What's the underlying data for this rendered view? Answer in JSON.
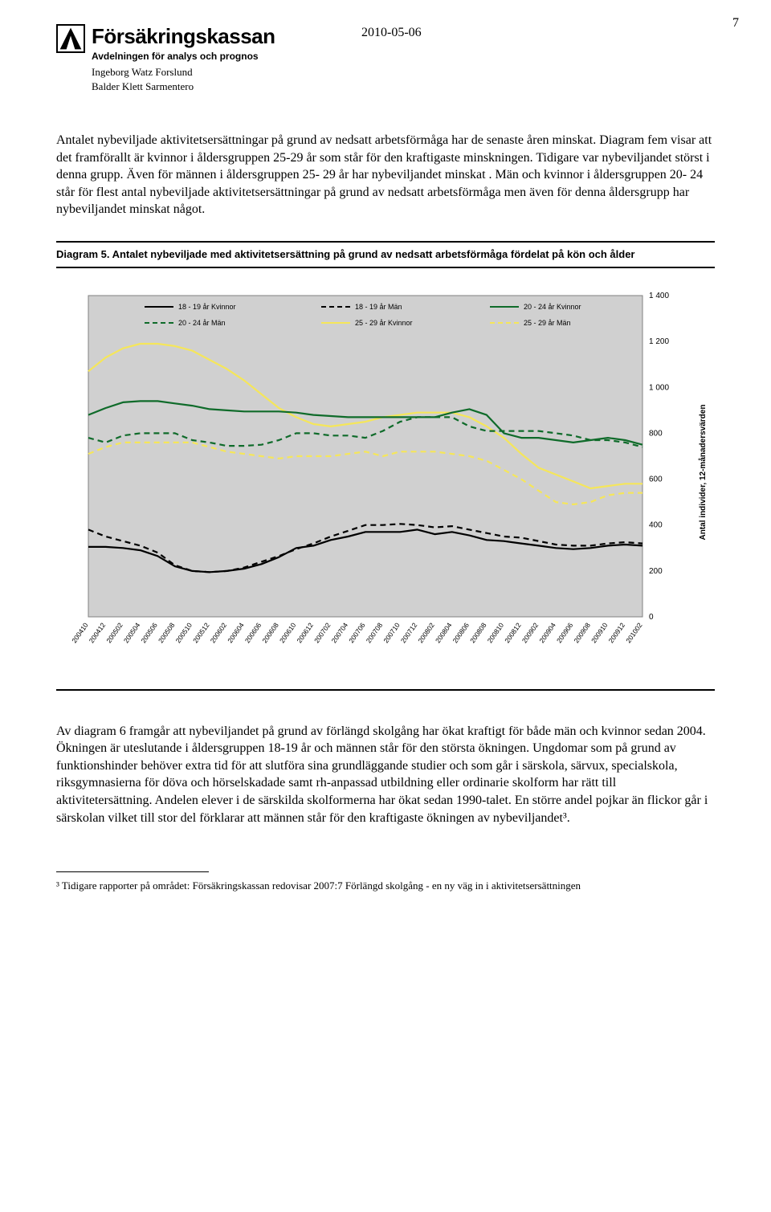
{
  "header": {
    "org_name": "Försäkringskassan",
    "department": "Avdelningen för analys och prognos",
    "author1": "Ingeborg Watz Forslund",
    "author2": "Balder Klett Sarmentero",
    "date": "2010-05-06",
    "page_number": "7"
  },
  "paragraph1": "Antalet nybeviljade aktivitetsersättningar på grund av nedsatt arbetsförmåga har de senaste åren minskat. Diagram fem visar att det framförallt är kvinnor i åldersgruppen 25-29 år som står för den kraftigaste minskningen. Tidigare var nybeviljandet störst i denna grupp. Även för männen i åldersgruppen 25- 29 år har nybeviljandet minskat . Män och kvinnor i åldersgruppen 20- 24 står för flest antal nybeviljade aktivitetsersättningar på grund av nedsatt arbetsförmåga men även för denna åldersgrupp har nybeviljandet minskat något.",
  "caption": "Diagram 5. Antalet nybeviljade med aktivitetsersättning på grund av nedsatt arbetsförmåga fördelat på kön och ålder",
  "paragraph2": "Av diagram 6 framgår att nybeviljandet på grund av förlängd skolgång har ökat kraftigt för både män och kvinnor sedan 2004. Ökningen är uteslutande i åldersgruppen 18-19 år och männen står för den största ökningen. Ungdomar som på grund av funktionshinder behöver extra tid för att slutföra sina grundläggande studier och som går i särskola, särvux, specialskola, riksgymnasierna för döva och hörselskadade samt rh-anpassad utbildning eller ordinarie skolform har rätt till aktivitetersättning. Andelen elever i de särskilda skolformerna har ökat sedan 1990-talet. En större andel pojkar än flickor går i särskolan vilket till stor del förklarar att männen står för den kraftigaste ökningen av nybeviljandet³.",
  "footnote": "³ Tidigare rapporter på området: Försäkringskassan redovisar 2007:7 Förlängd skolgång - en ny väg in i aktivitetsersättningen",
  "chart": {
    "type": "line",
    "background_color": "#d0d0d0",
    "plot_background": "#d0d0d0",
    "frame_color": "#808080",
    "title": "",
    "ylabel": "Antal individer, 12-månadersvärden",
    "label_fontsize": 10,
    "ylim": [
      0,
      1400
    ],
    "ytick_step": 200,
    "yticks": [
      "0",
      "200",
      "400",
      "600",
      "800",
      "1 000",
      "1 200",
      "1 400"
    ],
    "legend_fontsize": 9,
    "legend": [
      {
        "label": "18 - 19 år Kvinnor",
        "color": "#000000",
        "dash": "solid"
      },
      {
        "label": "18 - 19 år Män",
        "color": "#000000",
        "dash": "dashed"
      },
      {
        "label": "20 - 24 år Kvinnor",
        "color": "#0f6b2a",
        "dash": "solid"
      },
      {
        "label": "20 - 24 år Män",
        "color": "#0f6b2a",
        "dash": "dashed"
      },
      {
        "label": "25 - 29 år Kvinnor",
        "color": "#f5e65a",
        "dash": "solid"
      },
      {
        "label": "25 - 29 år Män",
        "color": "#f5e65a",
        "dash": "dashed"
      }
    ],
    "x_labels": [
      "200410",
      "200412",
      "200502",
      "200504",
      "200506",
      "200508",
      "200510",
      "200512",
      "200602",
      "200604",
      "200606",
      "200608",
      "200610",
      "200612",
      "200702",
      "200704",
      "200706",
      "200708",
      "200710",
      "200712",
      "200802",
      "200804",
      "200806",
      "200808",
      "200810",
      "200812",
      "200902",
      "200904",
      "200906",
      "200908",
      "200910",
      "200912",
      "201002"
    ],
    "series": {
      "s1_18_19_k": [
        305,
        305,
        300,
        290,
        265,
        220,
        200,
        195,
        200,
        210,
        230,
        260,
        300,
        310,
        335,
        350,
        370,
        370,
        370,
        380,
        360,
        370,
        355,
        335,
        330,
        320,
        310,
        300,
        295,
        300,
        310,
        315,
        310
      ],
      "s2_18_19_m": [
        380,
        350,
        330,
        310,
        280,
        225,
        200,
        195,
        200,
        215,
        240,
        265,
        295,
        320,
        350,
        375,
        400,
        400,
        405,
        400,
        390,
        395,
        380,
        365,
        350,
        345,
        330,
        315,
        310,
        310,
        320,
        325,
        320
      ],
      "s3_20_24_k": [
        880,
        910,
        935,
        940,
        940,
        930,
        920,
        905,
        900,
        895,
        895,
        895,
        890,
        880,
        875,
        870,
        870,
        870,
        870,
        870,
        870,
        890,
        905,
        880,
        800,
        780,
        780,
        770,
        760,
        770,
        780,
        770,
        750
      ],
      "s4_20_24_m": [
        780,
        760,
        790,
        800,
        800,
        800,
        770,
        760,
        745,
        745,
        750,
        770,
        800,
        800,
        790,
        790,
        780,
        810,
        850,
        870,
        870,
        870,
        830,
        810,
        810,
        810,
        810,
        800,
        790,
        770,
        770,
        760,
        740
      ],
      "s5_25_29_k": [
        1070,
        1130,
        1170,
        1190,
        1190,
        1180,
        1160,
        1120,
        1080,
        1030,
        970,
        910,
        870,
        840,
        830,
        840,
        850,
        870,
        880,
        890,
        890,
        890,
        870,
        830,
        780,
        710,
        650,
        620,
        590,
        560,
        570,
        580,
        580
      ],
      "s6_25_29_m": [
        710,
        740,
        760,
        760,
        760,
        760,
        760,
        740,
        720,
        710,
        700,
        690,
        700,
        700,
        700,
        710,
        720,
        700,
        720,
        720,
        720,
        710,
        700,
        680,
        640,
        600,
        550,
        500,
        490,
        500,
        530,
        540,
        540
      ]
    }
  }
}
